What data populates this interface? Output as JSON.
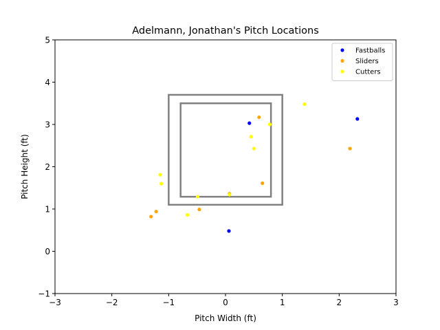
{
  "chart_data": {
    "type": "scatter",
    "title": "Adelmann, Jonathan's Pitch Locations",
    "xlabel": "Pitch Width (ft)",
    "ylabel": "Pitch Height (ft)",
    "xlim": [
      -3,
      3
    ],
    "ylim": [
      -1,
      5
    ],
    "xticks": [
      -3,
      -2,
      -1,
      0,
      1,
      2,
      3
    ],
    "yticks": [
      -1,
      0,
      1,
      2,
      3,
      4,
      5
    ],
    "grid": false,
    "legend_position": "top-right",
    "strike_zone_outer": {
      "x": [
        -1.0,
        1.0
      ],
      "y": [
        1.1,
        3.7
      ]
    },
    "strike_zone_inner": {
      "x": [
        -0.79,
        0.8
      ],
      "y": [
        1.29,
        3.5
      ]
    },
    "zone_color": "#808080",
    "series": [
      {
        "name": "Fastballs",
        "color": "#0000ff",
        "points": [
          [
            0.42,
            3.03
          ],
          [
            2.32,
            3.13
          ],
          [
            0.06,
            0.48
          ]
        ]
      },
      {
        "name": "Sliders",
        "color": "#ffa500",
        "points": [
          [
            0.59,
            3.17
          ],
          [
            2.19,
            2.43
          ],
          [
            0.65,
            1.61
          ],
          [
            0.07,
            1.36
          ],
          [
            -0.46,
            0.99
          ],
          [
            -1.22,
            0.94
          ],
          [
            -1.31,
            0.82
          ]
        ]
      },
      {
        "name": "Cutters",
        "color": "#ffff00",
        "points": [
          [
            1.39,
            3.48
          ],
          [
            0.78,
            3.0
          ],
          [
            0.45,
            2.71
          ],
          [
            0.5,
            2.43
          ],
          [
            -1.15,
            1.81
          ],
          [
            -1.13,
            1.6
          ],
          [
            -0.49,
            1.29
          ],
          [
            0.07,
            1.34
          ],
          [
            -0.67,
            0.86
          ]
        ]
      }
    ]
  }
}
